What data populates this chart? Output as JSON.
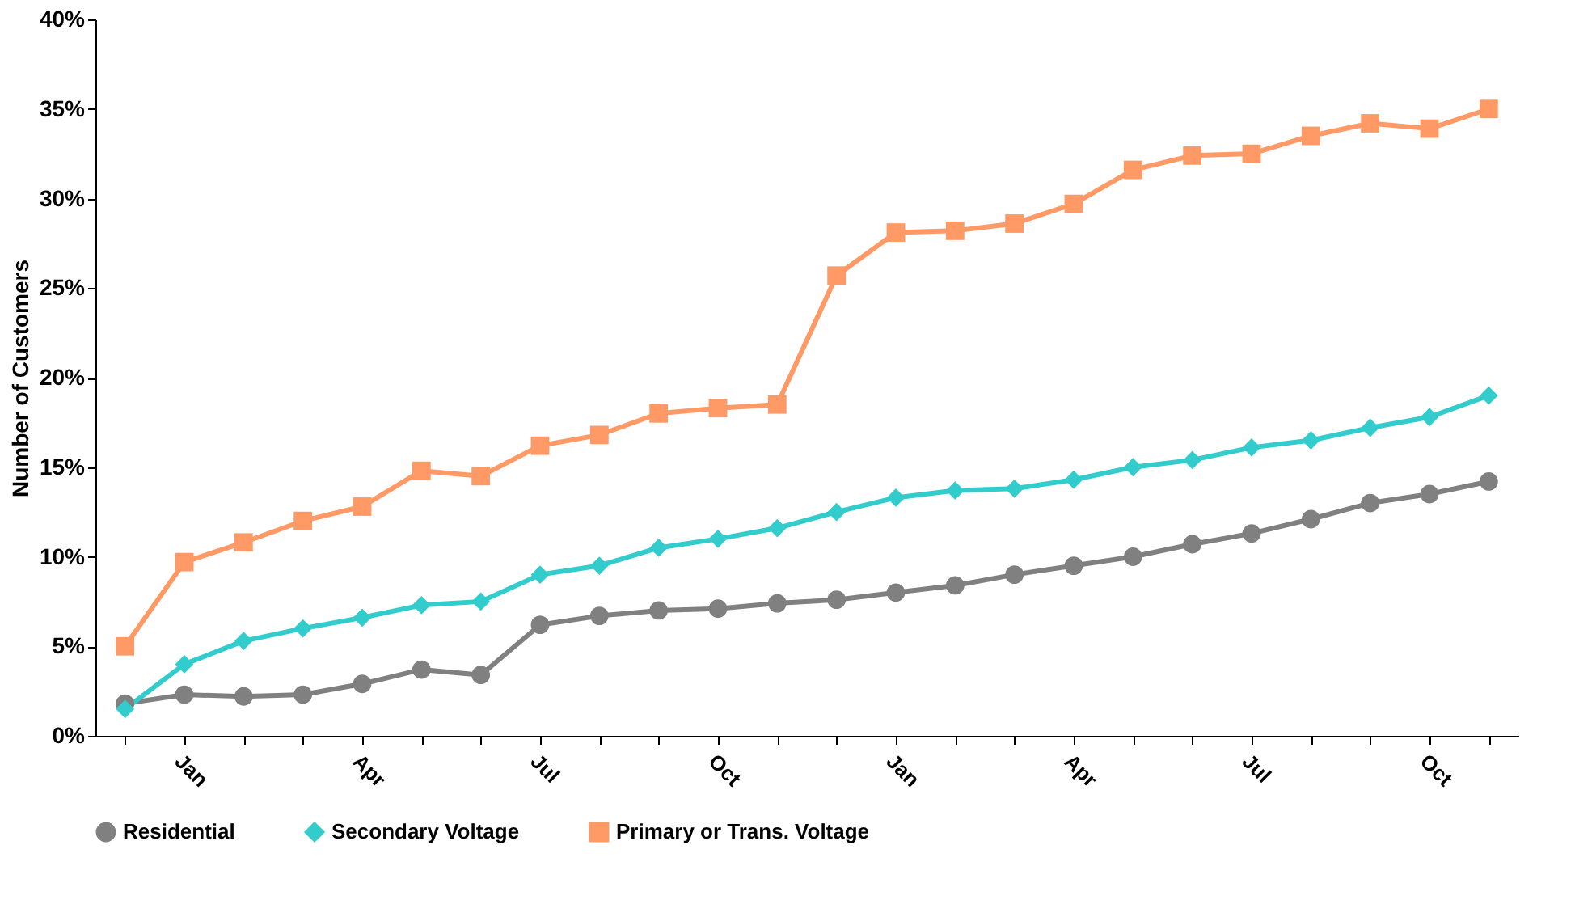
{
  "chart_data": {
    "type": "line",
    "ylabel": "Number of Customers",
    "categories": [
      null,
      "Jan",
      null,
      null,
      "Apr",
      null,
      null,
      "Jul",
      null,
      null,
      "Oct",
      null,
      null,
      "Jan",
      null,
      null,
      "Apr",
      null,
      null,
      "Jul",
      null,
      null,
      "Oct",
      null
    ],
    "series": [
      {
        "name": "Residential",
        "color": "#808080",
        "marker": "circle",
        "values": [
          1.8,
          2.3,
          2.2,
          2.3,
          2.9,
          3.7,
          3.4,
          6.2,
          6.7,
          7.0,
          7.1,
          7.4,
          7.6,
          8.0,
          8.4,
          9.0,
          9.5,
          10.0,
          10.7,
          11.3,
          12.1,
          13.0,
          13.5,
          14.2
        ]
      },
      {
        "name": "Secondary Voltage",
        "color": "#33cccc",
        "marker": "diamond",
        "values": [
          1.5,
          4.0,
          5.3,
          6.0,
          6.6,
          7.3,
          7.5,
          9.0,
          9.5,
          10.5,
          11.0,
          11.6,
          12.5,
          13.3,
          13.7,
          13.8,
          14.3,
          15.0,
          15.4,
          16.1,
          16.5,
          17.2,
          17.8,
          19.0
        ]
      },
      {
        "name": "Primary or Trans. Voltage",
        "color": "#ff9966",
        "marker": "square",
        "values": [
          5.0,
          9.7,
          10.8,
          12.0,
          12.8,
          14.8,
          14.5,
          16.2,
          16.8,
          18.0,
          18.3,
          18.5,
          25.7,
          28.1,
          28.2,
          28.6,
          29.7,
          31.6,
          32.4,
          32.5,
          33.5,
          34.2,
          33.9,
          35.0
        ]
      }
    ],
    "ylim": [
      0,
      40
    ],
    "yticks": [
      {
        "value": 0,
        "label": "0%"
      },
      {
        "value": 5,
        "label": "5%"
      },
      {
        "value": 10,
        "label": "10%"
      },
      {
        "value": 15,
        "label": "15%"
      },
      {
        "value": 20,
        "label": "20%"
      },
      {
        "value": 25,
        "label": "25%"
      },
      {
        "value": 30,
        "label": "30%"
      },
      {
        "value": 35,
        "label": "35%"
      },
      {
        "value": 40,
        "label": "40%"
      }
    ],
    "grid": false,
    "legend": "bottom",
    "line_style": "solid"
  }
}
